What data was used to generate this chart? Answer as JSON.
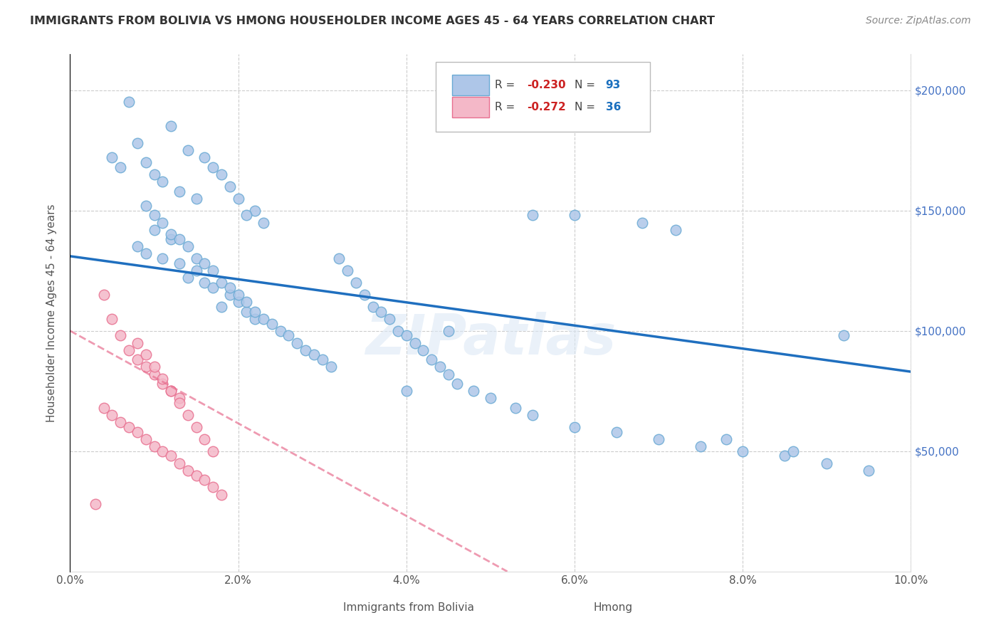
{
  "title": "IMMIGRANTS FROM BOLIVIA VS HMONG HOUSEHOLDER INCOME AGES 45 - 64 YEARS CORRELATION CHART",
  "source": "Source: ZipAtlas.com",
  "xlabel_ticks": [
    "0.0%",
    "2.0%",
    "4.0%",
    "6.0%",
    "8.0%",
    "10.0%"
  ],
  "xlabel_vals": [
    0.0,
    0.02,
    0.04,
    0.06,
    0.08,
    0.1
  ],
  "ylabel": "Householder Income Ages 45 - 64 years",
  "ylabel_ticks": [
    "$200,000",
    "$150,000",
    "$100,000",
    "$50,000"
  ],
  "ylabel_vals": [
    200000,
    150000,
    100000,
    50000
  ],
  "ylim_right_ticks": [
    "$200,000",
    "$150,000",
    "$100,000",
    "$50,000"
  ],
  "xlim": [
    0.0,
    0.1
  ],
  "ylim": [
    0,
    215000
  ],
  "bolivia_color": "#aec6e8",
  "bolivia_edge_color": "#6aaad4",
  "hmong_color": "#f4b8c8",
  "hmong_edge_color": "#e87090",
  "bolivia_line_color": "#1f6fbf",
  "hmong_line_color": "#e87090",
  "R_bolivia": -0.23,
  "N_bolivia": 93,
  "R_hmong": -0.272,
  "N_hmong": 36,
  "legend_label_bolivia": "Immigrants from Bolivia",
  "legend_label_hmong": "Hmong",
  "watermark": "ZIPatlas",
  "bolivia_line_x0": 0.0,
  "bolivia_line_y0": 131000,
  "bolivia_line_x1": 0.1,
  "bolivia_line_y1": 83000,
  "hmong_line_x0": 0.0,
  "hmong_line_y0": 100000,
  "hmong_line_x1": 0.052,
  "hmong_line_y1": 0,
  "bolivia_scatter_x": [
    0.007,
    0.012,
    0.008,
    0.005,
    0.009,
    0.006,
    0.01,
    0.011,
    0.013,
    0.015,
    0.014,
    0.016,
    0.017,
    0.018,
    0.019,
    0.02,
    0.022,
    0.021,
    0.023,
    0.01,
    0.012,
    0.008,
    0.009,
    0.011,
    0.013,
    0.015,
    0.014,
    0.016,
    0.017,
    0.019,
    0.02,
    0.018,
    0.021,
    0.022,
    0.009,
    0.01,
    0.011,
    0.012,
    0.013,
    0.014,
    0.015,
    0.016,
    0.017,
    0.018,
    0.019,
    0.02,
    0.021,
    0.022,
    0.023,
    0.024,
    0.025,
    0.026,
    0.027,
    0.028,
    0.029,
    0.03,
    0.031,
    0.032,
    0.033,
    0.034,
    0.035,
    0.036,
    0.037,
    0.038,
    0.039,
    0.04,
    0.041,
    0.042,
    0.043,
    0.044,
    0.045,
    0.046,
    0.048,
    0.05,
    0.053,
    0.055,
    0.06,
    0.065,
    0.07,
    0.075,
    0.08,
    0.085,
    0.09,
    0.095,
    0.04,
    0.055,
    0.06,
    0.045,
    0.068,
    0.072,
    0.078,
    0.086,
    0.092
  ],
  "bolivia_scatter_y": [
    195000,
    185000,
    178000,
    172000,
    170000,
    168000,
    165000,
    162000,
    158000,
    155000,
    175000,
    172000,
    168000,
    165000,
    160000,
    155000,
    150000,
    148000,
    145000,
    142000,
    138000,
    135000,
    132000,
    130000,
    128000,
    125000,
    122000,
    120000,
    118000,
    115000,
    112000,
    110000,
    108000,
    105000,
    152000,
    148000,
    145000,
    140000,
    138000,
    135000,
    130000,
    128000,
    125000,
    120000,
    118000,
    115000,
    112000,
    108000,
    105000,
    103000,
    100000,
    98000,
    95000,
    92000,
    90000,
    88000,
    85000,
    130000,
    125000,
    120000,
    115000,
    110000,
    108000,
    105000,
    100000,
    98000,
    95000,
    92000,
    88000,
    85000,
    82000,
    78000,
    75000,
    72000,
    68000,
    65000,
    60000,
    58000,
    55000,
    52000,
    50000,
    48000,
    45000,
    42000,
    75000,
    148000,
    148000,
    100000,
    145000,
    142000,
    55000,
    50000,
    98000
  ],
  "hmong_scatter_x": [
    0.004,
    0.005,
    0.006,
    0.007,
    0.008,
    0.009,
    0.01,
    0.011,
    0.012,
    0.013,
    0.004,
    0.005,
    0.006,
    0.007,
    0.008,
    0.009,
    0.01,
    0.011,
    0.012,
    0.013,
    0.014,
    0.015,
    0.016,
    0.017,
    0.018,
    0.008,
    0.009,
    0.01,
    0.011,
    0.012,
    0.013,
    0.014,
    0.015,
    0.016,
    0.017,
    0.003
  ],
  "hmong_scatter_y": [
    115000,
    105000,
    98000,
    92000,
    88000,
    85000,
    82000,
    78000,
    75000,
    72000,
    68000,
    65000,
    62000,
    60000,
    58000,
    55000,
    52000,
    50000,
    48000,
    45000,
    42000,
    40000,
    38000,
    35000,
    32000,
    95000,
    90000,
    85000,
    80000,
    75000,
    70000,
    65000,
    60000,
    55000,
    50000,
    28000
  ]
}
